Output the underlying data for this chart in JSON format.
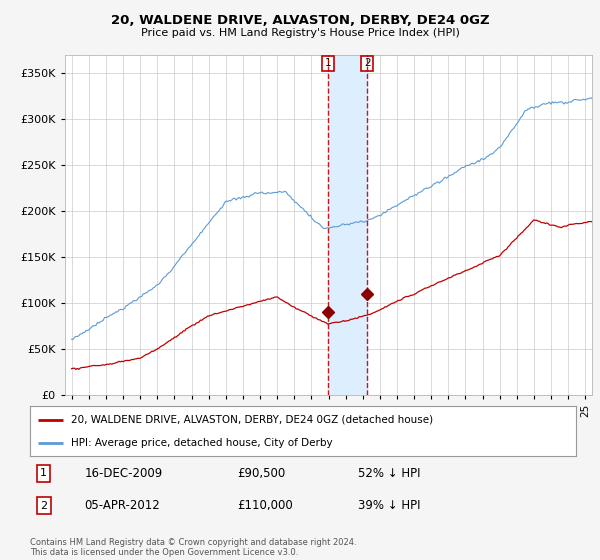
{
  "title": "20, WALDENE DRIVE, ALVASTON, DERBY, DE24 0GZ",
  "subtitle": "Price paid vs. HM Land Registry's House Price Index (HPI)",
  "legend_line1": "20, WALDENE DRIVE, ALVASTON, DERBY, DE24 0GZ (detached house)",
  "legend_line2": "HPI: Average price, detached house, City of Derby",
  "footnote": "Contains HM Land Registry data © Crown copyright and database right 2024.\nThis data is licensed under the Open Government Licence v3.0.",
  "transaction1_date": "16-DEC-2009",
  "transaction1_price": "£90,500",
  "transaction1_hpi": "52% ↓ HPI",
  "transaction1_x": 2009.96,
  "transaction1_y": 90500,
  "transaction2_date": "05-APR-2012",
  "transaction2_price": "£110,000",
  "transaction2_hpi": "39% ↓ HPI",
  "transaction2_x": 2012.27,
  "transaction2_y": 110000,
  "hpi_color": "#5b9bd5",
  "price_color": "#c00000",
  "vline_color": "#c00000",
  "span_color": "#ddeeff",
  "marker_color": "#8b0000",
  "ylim": [
    0,
    370000
  ],
  "xlim": [
    1994.6,
    2025.4
  ],
  "background_color": "#f5f5f5",
  "plot_bg_color": "#ffffff",
  "grid_color": "#cccccc",
  "yticks": [
    0,
    50000,
    100000,
    150000,
    200000,
    250000,
    300000,
    350000
  ]
}
